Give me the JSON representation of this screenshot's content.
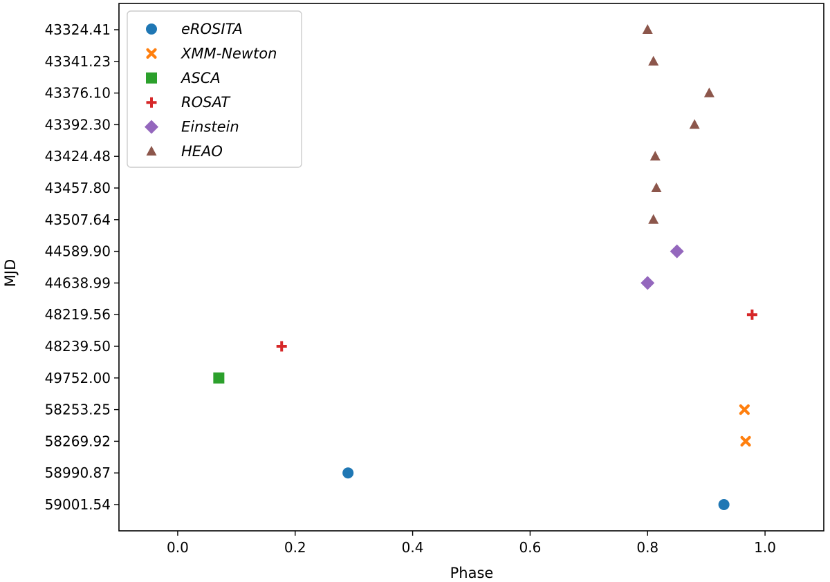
{
  "chart_data": {
    "type": "scatter",
    "xlabel": "Phase",
    "ylabel": "MJD",
    "xlim": [
      -0.1,
      1.1
    ],
    "xticks": [
      "0.0",
      "0.2",
      "0.4",
      "0.6",
      "0.8",
      "1.0"
    ],
    "categories": [
      "43324.41",
      "43341.23",
      "43376.10",
      "43392.30",
      "43424.48",
      "43457.80",
      "43507.64",
      "44589.90",
      "44638.99",
      "48219.56",
      "48239.50",
      "49752.00",
      "58253.25",
      "58269.92",
      "58990.87",
      "59001.54"
    ],
    "legend_position": "top-left",
    "grid": false,
    "series": [
      {
        "name": "eROSITA",
        "marker": "circle",
        "color": "#1f77b4",
        "points": [
          {
            "x": 0.29,
            "y": "58990.87"
          },
          {
            "x": 0.93,
            "y": "59001.54"
          }
        ]
      },
      {
        "name": "XMM-Newton",
        "marker": "x-cross",
        "color": "#ff7f0e",
        "points": [
          {
            "x": 0.965,
            "y": "58253.25"
          },
          {
            "x": 0.967,
            "y": "58269.92"
          }
        ]
      },
      {
        "name": "ASCA",
        "marker": "square",
        "color": "#2ca02c",
        "points": [
          {
            "x": 0.07,
            "y": "49752.00"
          }
        ]
      },
      {
        "name": "ROSAT",
        "marker": "plus",
        "color": "#d62728",
        "points": [
          {
            "x": 0.978,
            "y": "48219.56"
          },
          {
            "x": 0.177,
            "y": "48239.50"
          }
        ]
      },
      {
        "name": "Einstein",
        "marker": "diamond",
        "color": "#9467bd",
        "points": [
          {
            "x": 0.85,
            "y": "44589.90"
          },
          {
            "x": 0.8,
            "y": "44638.99"
          }
        ]
      },
      {
        "name": "HEAO",
        "marker": "triangle",
        "color": "#8c564b",
        "points": [
          {
            "x": 0.8,
            "y": "43324.41"
          },
          {
            "x": 0.81,
            "y": "43341.23"
          },
          {
            "x": 0.905,
            "y": "43376.10"
          },
          {
            "x": 0.88,
            "y": "43392.30"
          },
          {
            "x": 0.813,
            "y": "43424.48"
          },
          {
            "x": 0.815,
            "y": "43457.80"
          },
          {
            "x": 0.81,
            "y": "43507.64"
          }
        ]
      }
    ]
  }
}
